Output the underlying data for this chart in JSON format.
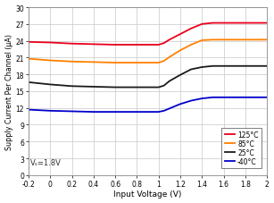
{
  "xlabel": "Input Voltage (V)",
  "ylabel": "Supply Current Per Channel (μA)",
  "annotation": "Vₛ=1.8V",
  "xlim": [
    -0.2,
    2.0
  ],
  "ylim": [
    0,
    30
  ],
  "xticks": [
    -0.2,
    0.0,
    0.2,
    0.4,
    0.6,
    0.8,
    1.0,
    1.2,
    1.4,
    1.6,
    1.8,
    2.0
  ],
  "xtick_labels": [
    "-0.2",
    "0",
    "0.2",
    "0.4",
    "0.6",
    "0.8",
    "1",
    "1.2",
    "1.4",
    "1.6",
    "1.8",
    "2"
  ],
  "yticks": [
    0,
    3,
    6,
    9,
    12,
    15,
    18,
    21,
    24,
    27,
    30
  ],
  "ytick_labels": [
    "0",
    "3",
    "6",
    "9",
    "12",
    "15",
    "18",
    "21",
    "24",
    "27",
    "30"
  ],
  "curves": {
    "125C": {
      "color": "#e8001c",
      "label": "125°C",
      "x": [
        -0.2,
        0.0,
        0.2,
        0.4,
        0.6,
        0.8,
        1.0,
        1.05,
        1.1,
        1.2,
        1.3,
        1.4,
        1.5,
        1.6,
        1.7,
        1.8,
        1.9,
        2.0
      ],
      "y": [
        23.8,
        23.7,
        23.5,
        23.4,
        23.3,
        23.3,
        23.3,
        23.6,
        24.2,
        25.2,
        26.2,
        27.0,
        27.2,
        27.2,
        27.2,
        27.2,
        27.2,
        27.2
      ]
    },
    "85C": {
      "color": "#ff8000",
      "label": "85°C",
      "x": [
        -0.2,
        0.0,
        0.2,
        0.4,
        0.6,
        0.8,
        1.0,
        1.05,
        1.1,
        1.2,
        1.3,
        1.4,
        1.5,
        1.6,
        1.7,
        1.8,
        1.9,
        2.0
      ],
      "y": [
        20.8,
        20.5,
        20.3,
        20.2,
        20.1,
        20.1,
        20.1,
        20.4,
        21.1,
        22.3,
        23.3,
        24.1,
        24.2,
        24.2,
        24.2,
        24.2,
        24.2,
        24.2
      ]
    },
    "25C": {
      "color": "#1a1a1a",
      "label": "25°C",
      "x": [
        -0.2,
        0.0,
        0.2,
        0.4,
        0.6,
        0.8,
        1.0,
        1.05,
        1.1,
        1.2,
        1.3,
        1.4,
        1.5,
        1.6,
        1.7,
        1.8,
        1.9,
        2.0
      ],
      "y": [
        16.6,
        16.2,
        15.9,
        15.8,
        15.7,
        15.7,
        15.7,
        16.0,
        16.8,
        17.9,
        18.9,
        19.3,
        19.5,
        19.5,
        19.5,
        19.5,
        19.5,
        19.5
      ]
    },
    "m40C": {
      "color": "#0000cc",
      "label": "-40°C",
      "x": [
        -0.2,
        0.0,
        0.2,
        0.4,
        0.6,
        0.8,
        1.0,
        1.05,
        1.1,
        1.2,
        1.3,
        1.4,
        1.5,
        1.6,
        1.7,
        1.8,
        1.9,
        2.0
      ],
      "y": [
        11.7,
        11.5,
        11.4,
        11.3,
        11.3,
        11.3,
        11.3,
        11.5,
        11.9,
        12.7,
        13.3,
        13.7,
        13.9,
        13.9,
        13.9,
        13.9,
        13.9,
        13.9
      ]
    }
  },
  "plot_bg": "#ffffff",
  "fig_bg": "#ffffff",
  "grid_color": "#c8c8c8",
  "spine_color": "#888888",
  "legend_loc": "lower right",
  "linewidth": 1.3
}
